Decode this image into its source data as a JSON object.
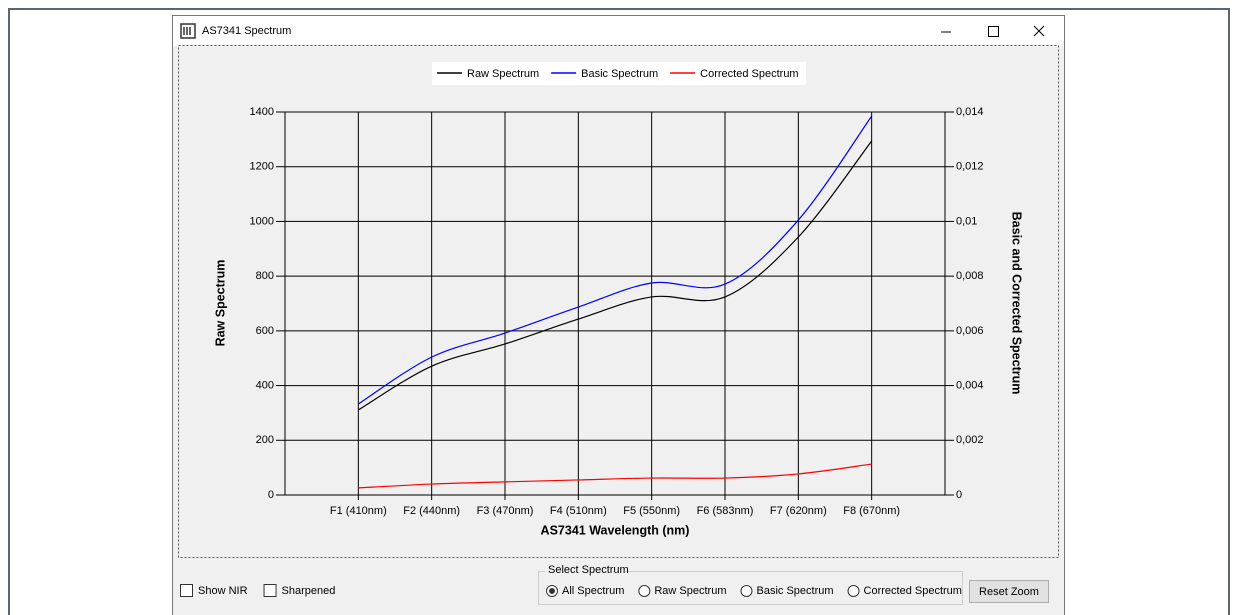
{
  "window": {
    "title": "AS7341 Spectrum"
  },
  "chart_data": {
    "type": "line",
    "x_label": "AS7341 Wavelength (nm)",
    "y_label": "Raw Spectrum",
    "y2_label": "Basic and Corrected Spectrum",
    "legend": "top",
    "grid": true,
    "categories": [
      "F1 (410nm)",
      "F2 (440nm)",
      "F3 (470nm)",
      "F4 (510nm)",
      "F5 (550nm)",
      "F6 (583nm)",
      "F7 (620nm)",
      "F8 (670nm)"
    ],
    "series": [
      {
        "name": "Raw Spectrum",
        "color": "#000000",
        "values": [
          311,
          471,
          552,
          643,
          724,
          724,
          943,
          1294
        ]
      },
      {
        "name": "Basic Spectrum",
        "color": "#0000ff",
        "axis": "y2",
        "values": [
          0.00333,
          0.00504,
          0.00592,
          0.00687,
          0.00775,
          0.00771,
          0.01005,
          0.01385
        ]
      },
      {
        "name": "Corrected Spectrum",
        "color": "#ff0000",
        "axis": "y2",
        "values": [
          0.00026,
          0.0004,
          0.00048,
          0.00055,
          0.00062,
          0.00062,
          0.00077,
          0.00113
        ]
      }
    ],
    "ylim": [
      0,
      1400
    ],
    "yticks": [
      0,
      200,
      400,
      600,
      800,
      1000,
      1200,
      1400
    ],
    "y2lim": [
      0,
      0.014
    ],
    "y2ticks": [
      0,
      {
        "value": 0.002,
        "label": "0,002"
      },
      {
        "value": 0.004,
        "label": "0,004"
      },
      {
        "value": 0.006,
        "label": "0,006"
      },
      {
        "value": 0.008,
        "label": "0,008"
      },
      {
        "value": 0.01,
        "label": "0,01"
      },
      {
        "value": 0.012,
        "label": "0,012"
      },
      {
        "value": 0.014,
        "label": "0,014"
      }
    ]
  },
  "controls": {
    "checkboxes": [
      "Show NIR",
      "Sharpened"
    ],
    "group_title": "Select Spectrum",
    "radios": [
      "All Spectrum",
      "Raw Spectrum",
      "Basic Spectrum",
      "Corrected Spectrum"
    ],
    "selected_radio": 0,
    "button": "Reset Zoom"
  }
}
